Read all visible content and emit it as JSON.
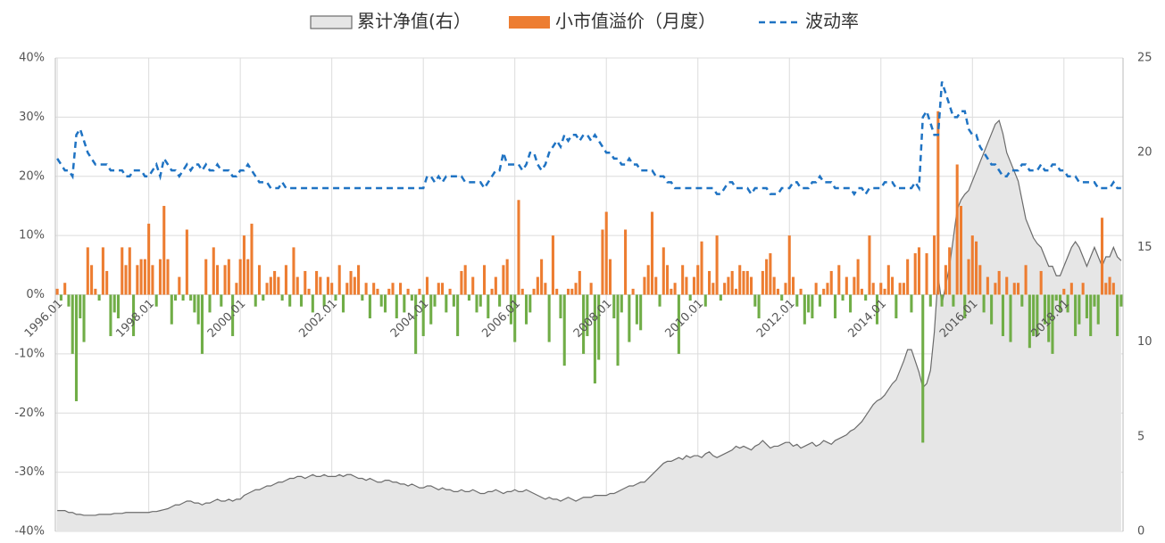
{
  "chart_data": {
    "type": "combo",
    "legend": "top",
    "grid": true,
    "categories": [
      "1996.01",
      null,
      null,
      null,
      null,
      null,
      null,
      null,
      null,
      null,
      null,
      null,
      null,
      null,
      null,
      null,
      null,
      null,
      null,
      null,
      null,
      null,
      null,
      null,
      "1998.01",
      null,
      null,
      null,
      null,
      null,
      null,
      null,
      null,
      null,
      null,
      null,
      null,
      null,
      null,
      null,
      null,
      null,
      null,
      null,
      null,
      null,
      null,
      null,
      "2000.01",
      null,
      null,
      null,
      null,
      null,
      null,
      null,
      null,
      null,
      null,
      null,
      null,
      null,
      null,
      null,
      null,
      null,
      null,
      null,
      null,
      null,
      null,
      null,
      "2002.01",
      null,
      null,
      null,
      null,
      null,
      null,
      null,
      null,
      null,
      null,
      null,
      null,
      null,
      null,
      null,
      null,
      null,
      null,
      null,
      null,
      null,
      null,
      null,
      "2004.01",
      null,
      null,
      null,
      null,
      null,
      null,
      null,
      null,
      null,
      null,
      null,
      null,
      null,
      null,
      null,
      null,
      null,
      null,
      null,
      null,
      null,
      null,
      null,
      "2006.01",
      null,
      null,
      null,
      null,
      null,
      null,
      null,
      null,
      null,
      null,
      null,
      null,
      null,
      null,
      null,
      null,
      null,
      null,
      null,
      null,
      null,
      null,
      null,
      "2008.01",
      null,
      null,
      null,
      null,
      null,
      null,
      null,
      null,
      null,
      null,
      null,
      null,
      null,
      null,
      null,
      null,
      null,
      null,
      null,
      null,
      null,
      null,
      null,
      "2010.01",
      null,
      null,
      null,
      null,
      null,
      null,
      null,
      null,
      null,
      null,
      null,
      null,
      null,
      null,
      null,
      null,
      null,
      null,
      null,
      null,
      null,
      null,
      null,
      "2012.01",
      null,
      null,
      null,
      null,
      null,
      null,
      null,
      null,
      null,
      null,
      null,
      null,
      null,
      null,
      null,
      null,
      null,
      null,
      null,
      null,
      null,
      null,
      null,
      "2014.01",
      null,
      null,
      null,
      null,
      null,
      null,
      null,
      null,
      null,
      null,
      null,
      null,
      null,
      null,
      null,
      null,
      null,
      null,
      null,
      null,
      null,
      null,
      null,
      "2016.01",
      null,
      null,
      null,
      null,
      null,
      null,
      null,
      null,
      null,
      null,
      null,
      null,
      null,
      null,
      null,
      null,
      null,
      null,
      null,
      null,
      null,
      null,
      null,
      "2018.01",
      null,
      null,
      null,
      null,
      null,
      null,
      null,
      null,
      null,
      null,
      null,
      null,
      null,
      null,
      null
    ],
    "series": [
      {
        "name": "累计净值(右）",
        "type": "area",
        "axis": "y2",
        "color": "#e6e6e6",
        "line_color": "#6b6b6b",
        "values": [
          1.1,
          1.1,
          1.1,
          1.0,
          1.0,
          0.9,
          0.9,
          0.85,
          0.85,
          0.85,
          0.85,
          0.9,
          0.9,
          0.9,
          0.9,
          0.95,
          0.95,
          0.95,
          1.0,
          1.0,
          1.0,
          1.0,
          1.0,
          1.0,
          1.0,
          1.05,
          1.05,
          1.1,
          1.15,
          1.2,
          1.3,
          1.4,
          1.4,
          1.5,
          1.6,
          1.6,
          1.5,
          1.5,
          1.4,
          1.5,
          1.5,
          1.6,
          1.7,
          1.6,
          1.6,
          1.7,
          1.6,
          1.7,
          1.7,
          1.9,
          2.0,
          2.1,
          2.2,
          2.2,
          2.3,
          2.4,
          2.4,
          2.5,
          2.6,
          2.6,
          2.7,
          2.8,
          2.8,
          2.9,
          2.9,
          2.8,
          2.9,
          3.0,
          2.9,
          2.9,
          3.0,
          2.9,
          2.9,
          2.9,
          3.0,
          2.9,
          3.0,
          3.0,
          2.9,
          2.8,
          2.8,
          2.7,
          2.8,
          2.7,
          2.6,
          2.6,
          2.7,
          2.7,
          2.6,
          2.6,
          2.5,
          2.5,
          2.4,
          2.5,
          2.4,
          2.3,
          2.3,
          2.4,
          2.4,
          2.3,
          2.2,
          2.3,
          2.2,
          2.2,
          2.1,
          2.1,
          2.2,
          2.1,
          2.1,
          2.2,
          2.1,
          2.0,
          2.0,
          2.1,
          2.1,
          2.2,
          2.1,
          2.0,
          2.1,
          2.1,
          2.2,
          2.1,
          2.1,
          2.2,
          2.1,
          2.0,
          1.9,
          1.8,
          1.7,
          1.8,
          1.7,
          1.7,
          1.6,
          1.7,
          1.8,
          1.7,
          1.6,
          1.7,
          1.8,
          1.8,
          1.8,
          1.9,
          1.9,
          1.9,
          1.9,
          2.0,
          2.0,
          2.1,
          2.2,
          2.3,
          2.4,
          2.4,
          2.5,
          2.6,
          2.6,
          2.8,
          3.0,
          3.2,
          3.4,
          3.6,
          3.7,
          3.7,
          3.8,
          3.9,
          3.8,
          4.0,
          3.9,
          4.0,
          4.0,
          3.9,
          4.1,
          4.2,
          4.0,
          3.9,
          4.0,
          4.1,
          4.2,
          4.3,
          4.5,
          4.4,
          4.5,
          4.4,
          4.3,
          4.5,
          4.6,
          4.8,
          4.6,
          4.4,
          4.5,
          4.5,
          4.6,
          4.7,
          4.7,
          4.5,
          4.6,
          4.4,
          4.5,
          4.6,
          4.7,
          4.5,
          4.6,
          4.8,
          4.7,
          4.6,
          4.8,
          4.9,
          5.0,
          5.1,
          5.3,
          5.4,
          5.6,
          5.8,
          6.1,
          6.4,
          6.7,
          6.9,
          7.0,
          7.2,
          7.5,
          7.8,
          8.0,
          8.5,
          9.0,
          9.6,
          9.6,
          9.0,
          8.4,
          7.6,
          7.8,
          8.5,
          10.5,
          13.5,
          12,
          13,
          14,
          15.5,
          17,
          17.5,
          17.8,
          18,
          18.5,
          19,
          19.5,
          20,
          20.5,
          21,
          21.5,
          21.7,
          21,
          20,
          19.5,
          19,
          18.5,
          17.5,
          16.5,
          16,
          15.5,
          15.2,
          15,
          14.5,
          14,
          14,
          13.5,
          13.5,
          14,
          14.5,
          15,
          15.3,
          15,
          14.5,
          14,
          14.5,
          15,
          14.5,
          14,
          14.5,
          14.5,
          15,
          14.5,
          14.3
        ]
      },
      {
        "name": "小市值溢价（月度）",
        "type": "bar",
        "color": "#ed7d31",
        "negative_color": "#70ad47",
        "values": [
          1,
          -1,
          2,
          -2,
          -10,
          -18,
          -4,
          -8,
          8,
          5,
          1,
          -1,
          8,
          4,
          -7,
          -3,
          -4,
          8,
          5,
          8,
          -7,
          5,
          6,
          6,
          12,
          5,
          -2,
          6,
          15,
          6,
          -5,
          -1,
          3,
          -1,
          11,
          -1,
          -3,
          -5,
          -10,
          6,
          -3,
          8,
          5,
          -2,
          5,
          6,
          -7,
          2,
          6,
          10,
          6,
          12,
          -2,
          5,
          -1,
          2,
          3,
          4,
          3,
          -1,
          5,
          -2,
          8,
          3,
          -2,
          4,
          1,
          -3,
          4,
          3,
          -2,
          3,
          2,
          -1,
          5,
          -3,
          2,
          4,
          3,
          5,
          -1,
          2,
          -4,
          2,
          1,
          -2,
          -3,
          1,
          2,
          -4,
          2,
          -3,
          1,
          -1,
          -10,
          1,
          -7,
          3,
          -5,
          -2,
          2,
          2,
          -3,
          1,
          -2,
          -7,
          4,
          5,
          -1,
          3,
          -3,
          -2,
          5,
          -4,
          1,
          3,
          -2,
          5,
          6,
          -5,
          -8,
          16,
          1,
          -5,
          -3,
          1,
          3,
          6,
          2,
          -8,
          10,
          1,
          -4,
          -12,
          1,
          1,
          2,
          4,
          -10,
          -7,
          2,
          -15,
          -11,
          11,
          14,
          6,
          -4,
          -12,
          -3,
          11,
          -8,
          1,
          -5,
          -6,
          3,
          5,
          14,
          3,
          -2,
          8,
          5,
          1,
          2,
          -10,
          5,
          3,
          -1,
          3,
          5,
          9,
          -2,
          4,
          2,
          10,
          -1,
          2,
          3,
          4,
          1,
          5,
          4,
          4,
          3,
          -2,
          -4,
          4,
          6,
          7,
          3,
          1,
          -1,
          2,
          10,
          3,
          -2,
          1,
          -5,
          -3,
          -4,
          2,
          -2,
          1,
          2,
          4,
          -4,
          5,
          -1,
          3,
          -3,
          3,
          6,
          1,
          -1,
          10,
          2,
          -5,
          2,
          1,
          5,
          3,
          -4,
          2,
          2,
          6,
          -3,
          7,
          8,
          -25,
          7,
          -2,
          10,
          31,
          -2,
          5,
          8,
          -2,
          22,
          15,
          -4,
          6,
          10,
          9,
          5,
          -3,
          3,
          -5,
          2,
          4,
          -7,
          3,
          -8,
          2,
          2,
          -2,
          5,
          -9,
          -7,
          -7,
          4,
          -5,
          -8,
          -10,
          -1,
          -3,
          1,
          -3,
          2,
          -7,
          -5,
          2,
          -4,
          -7,
          -2,
          -5,
          13,
          2,
          3,
          2,
          -7,
          -2
        ]
      },
      {
        "name": "波动率",
        "type": "line",
        "color": "#1f73c3",
        "dashed": true,
        "values": [
          23,
          22,
          21,
          21,
          20,
          27,
          28,
          26,
          24,
          23,
          22,
          22,
          22,
          22,
          21,
          21,
          21,
          21,
          20,
          20,
          21,
          21,
          21,
          20,
          20,
          21,
          22,
          20,
          23,
          22,
          21,
          21,
          20,
          21,
          22,
          21,
          22,
          22,
          21,
          22,
          21,
          21,
          22,
          21,
          21,
          21,
          20,
          20,
          21,
          21,
          22,
          21,
          20,
          19,
          19,
          19,
          18,
          18,
          18,
          19,
          18,
          18,
          18,
          18,
          18,
          18,
          18,
          18,
          18,
          18,
          18,
          18,
          18,
          18,
          18,
          18,
          18,
          18,
          18,
          18,
          18,
          18,
          18,
          18,
          18,
          18,
          18,
          18,
          18,
          18,
          18,
          18,
          18,
          18,
          18,
          18,
          18,
          20,
          20,
          19,
          20,
          19,
          20,
          20,
          20,
          20,
          20,
          19,
          19,
          19,
          19,
          19,
          18,
          19,
          20,
          21,
          21,
          24,
          22,
          22,
          22,
          22,
          21,
          22,
          24,
          24,
          22,
          21,
          22,
          24,
          25,
          26,
          25,
          27,
          26,
          27,
          27,
          26,
          27,
          27,
          26,
          27,
          26,
          25,
          24,
          24,
          23,
          23,
          22,
          22,
          23,
          22,
          22,
          21,
          21,
          21,
          21,
          20,
          20,
          20,
          19,
          19,
          18,
          18,
          18,
          18,
          18,
          18,
          18,
          18,
          18,
          18,
          18,
          17,
          17,
          18,
          19,
          19,
          18,
          18,
          18,
          18,
          17,
          18,
          18,
          18,
          18,
          17,
          17,
          17,
          18,
          18,
          18,
          19,
          19,
          18,
          18,
          18,
          19,
          19,
          20,
          19,
          19,
          19,
          18,
          18,
          18,
          18,
          18,
          17,
          18,
          18,
          17,
          18,
          18,
          18,
          18,
          19,
          19,
          19,
          18,
          18,
          18,
          18,
          18,
          19,
          18,
          30,
          31,
          29,
          27,
          27,
          36,
          34,
          32,
          30,
          30,
          31,
          31,
          28,
          27,
          27,
          25,
          24,
          23,
          22,
          22,
          21,
          20,
          20,
          21,
          21,
          21,
          22,
          22,
          21,
          21,
          21,
          22,
          21,
          21,
          22,
          22,
          21,
          21,
          20,
          20,
          20,
          19,
          19,
          19,
          19,
          19,
          18,
          18,
          18,
          18,
          19,
          18,
          18
        ]
      }
    ],
    "ylim": [
      -40,
      40
    ],
    "yticks": [
      {
        "value": -40,
        "label": "-40%"
      },
      {
        "value": -30,
        "label": "-30%"
      },
      {
        "value": -20,
        "label": "-20%"
      },
      {
        "value": -10,
        "label": "-10%"
      },
      {
        "value": 0,
        "label": "0%"
      },
      {
        "value": 10,
        "label": "10%"
      },
      {
        "value": 20,
        "label": "20%"
      },
      {
        "value": 30,
        "label": "30%"
      },
      {
        "value": 40,
        "label": "40%"
      }
    ],
    "y2lim": [
      0,
      25
    ],
    "y2ticks": [
      0,
      5,
      10,
      15,
      20,
      25
    ]
  }
}
